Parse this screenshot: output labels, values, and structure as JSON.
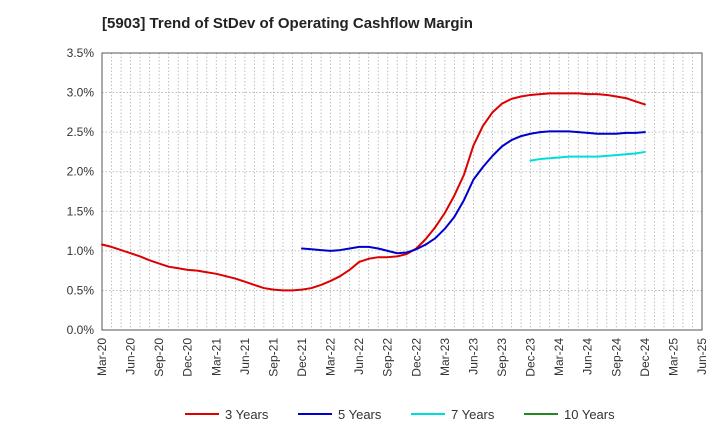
{
  "chart_data": {
    "type": "line",
    "title": "[5903]  Trend of StDev of Operating Cashflow Margin",
    "xlabel": "",
    "ylabel": "",
    "ylim": [
      0,
      3.5
    ],
    "y_ticks": [
      "0.0%",
      "0.5%",
      "1.0%",
      "1.5%",
      "2.0%",
      "2.5%",
      "3.0%",
      "3.5%"
    ],
    "y_tick_values": [
      0,
      0.5,
      1.0,
      1.5,
      2.0,
      2.5,
      3.0,
      3.5
    ],
    "x_ticks": [
      "Mar-20",
      "Jun-20",
      "Sep-20",
      "Dec-20",
      "Mar-21",
      "Jun-21",
      "Sep-21",
      "Dec-21",
      "Mar-22",
      "Jun-22",
      "Sep-22",
      "Dec-22",
      "Mar-23",
      "Jun-23",
      "Sep-23",
      "Dec-23",
      "Mar-24",
      "Jun-24",
      "Sep-24",
      "Dec-24",
      "Mar-25",
      "Jun-25"
    ],
    "grid": true,
    "legend_position": "bottom",
    "series": [
      {
        "name": "3 Years",
        "color": "#dd0000",
        "x": [
          "Mar-20",
          "Apr-20",
          "May-20",
          "Jun-20",
          "Jul-20",
          "Aug-20",
          "Sep-20",
          "Oct-20",
          "Nov-20",
          "Dec-20",
          "Jan-21",
          "Feb-21",
          "Mar-21",
          "Apr-21",
          "May-21",
          "Jun-21",
          "Jul-21",
          "Aug-21",
          "Sep-21",
          "Oct-21",
          "Nov-21",
          "Dec-21",
          "Jan-22",
          "Feb-22",
          "Mar-22",
          "Apr-22",
          "May-22",
          "Jun-22",
          "Jul-22",
          "Aug-22",
          "Sep-22",
          "Oct-22",
          "Nov-22",
          "Dec-22",
          "Jan-23",
          "Feb-23",
          "Mar-23",
          "Apr-23",
          "May-23",
          "Jun-23",
          "Jul-23",
          "Aug-23",
          "Sep-23",
          "Oct-23",
          "Nov-23",
          "Dec-23",
          "Jan-24",
          "Feb-24",
          "Mar-24",
          "Apr-24",
          "May-24",
          "Jun-24",
          "Jul-24",
          "Aug-24",
          "Sep-24",
          "Oct-24",
          "Nov-24",
          "Dec-24"
        ],
        "values": [
          1.08,
          1.05,
          1.01,
          0.97,
          0.93,
          0.88,
          0.84,
          0.8,
          0.78,
          0.76,
          0.75,
          0.73,
          0.71,
          0.68,
          0.65,
          0.61,
          0.57,
          0.53,
          0.51,
          0.5,
          0.5,
          0.51,
          0.53,
          0.57,
          0.62,
          0.68,
          0.76,
          0.86,
          0.9,
          0.92,
          0.92,
          0.93,
          0.96,
          1.03,
          1.15,
          1.3,
          1.48,
          1.7,
          1.96,
          2.33,
          2.58,
          2.75,
          2.86,
          2.92,
          2.95,
          2.97,
          2.98,
          2.99,
          2.99,
          2.99,
          2.99,
          2.98,
          2.98,
          2.97,
          2.95,
          2.93,
          2.89,
          2.85
        ]
      },
      {
        "name": "5 Years",
        "color": "#0000cc",
        "x": [
          "Dec-21",
          "Jan-22",
          "Feb-22",
          "Mar-22",
          "Apr-22",
          "May-22",
          "Jun-22",
          "Jul-22",
          "Aug-22",
          "Sep-22",
          "Oct-22",
          "Nov-22",
          "Dec-22",
          "Jan-23",
          "Feb-23",
          "Mar-23",
          "Apr-23",
          "May-23",
          "Jun-23",
          "Jul-23",
          "Aug-23",
          "Sep-23",
          "Oct-23",
          "Nov-23",
          "Dec-23",
          "Jan-24",
          "Feb-24",
          "Mar-24",
          "Apr-24",
          "May-24",
          "Jun-24",
          "Jul-24",
          "Aug-24",
          "Sep-24",
          "Oct-24",
          "Nov-24",
          "Dec-24"
        ],
        "values": [
          1.03,
          1.02,
          1.01,
          1.0,
          1.01,
          1.03,
          1.05,
          1.05,
          1.03,
          1.0,
          0.97,
          0.98,
          1.02,
          1.08,
          1.16,
          1.28,
          1.43,
          1.64,
          1.9,
          2.06,
          2.2,
          2.32,
          2.4,
          2.45,
          2.48,
          2.5,
          2.51,
          2.51,
          2.51,
          2.5,
          2.49,
          2.48,
          2.48,
          2.48,
          2.49,
          2.49,
          2.5
        ]
      },
      {
        "name": "7 Years",
        "color": "#00dddd",
        "x": [
          "Dec-23",
          "Jan-24",
          "Feb-24",
          "Mar-24",
          "Apr-24",
          "May-24",
          "Jun-24",
          "Jul-24",
          "Aug-24",
          "Sep-24",
          "Oct-24",
          "Nov-24",
          "Dec-24"
        ],
        "values": [
          2.14,
          2.16,
          2.17,
          2.18,
          2.19,
          2.19,
          2.19,
          2.19,
          2.2,
          2.21,
          2.22,
          2.23,
          2.25
        ]
      },
      {
        "name": "10 Years",
        "color": "#228822",
        "x": [],
        "values": []
      }
    ]
  }
}
